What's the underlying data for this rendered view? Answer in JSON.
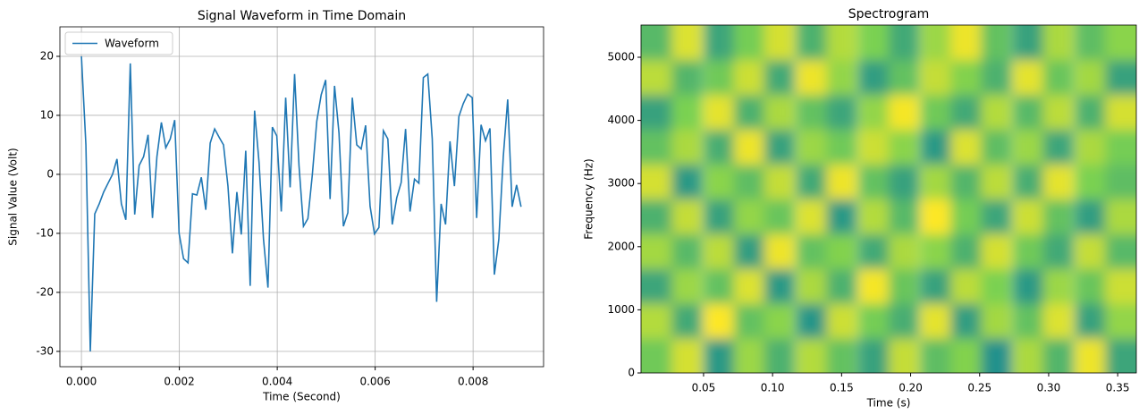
{
  "chart_data": [
    {
      "type": "line",
      "title": "Signal Waveform in Time Domain",
      "x_label": "Time (Second)",
      "y_label": "Signal Value (Volt)",
      "x": [
        0,
        9.1e-05,
        0.000181,
        0.000272,
        0.000363,
        0.000454,
        0.000544,
        0.000635,
        0.000726,
        0.000816,
        0.000907,
        0.000998,
        0.001088,
        0.001179,
        0.00127,
        0.001361,
        0.001451,
        0.001542,
        0.001633,
        0.001723,
        0.001814,
        0.001905,
        0.001995,
        0.002086,
        0.002177,
        0.002268,
        0.002358,
        0.002449,
        0.00254,
        0.00263,
        0.002721,
        0.002812,
        0.002902,
        0.002993,
        0.003084,
        0.003175,
        0.003265,
        0.003356,
        0.003447,
        0.003537,
        0.003628,
        0.003719,
        0.00381,
        0.0039,
        0.003991,
        0.004082,
        0.004172,
        0.004263,
        0.004354,
        0.004444,
        0.004535,
        0.004626,
        0.004717,
        0.004807,
        0.004898,
        0.004989,
        0.005079,
        0.00517,
        0.005261,
        0.005351,
        0.005442,
        0.005533,
        0.005624,
        0.005714,
        0.005805,
        0.005896,
        0.005986,
        0.006077,
        0.006168,
        0.006259,
        0.006349,
        0.00644,
        0.006531,
        0.006621,
        0.006712,
        0.006803,
        0.006893,
        0.006984,
        0.007075,
        0.007166,
        0.007256,
        0.007347,
        0.007438,
        0.007528,
        0.007619,
        0.00771,
        0.0078,
        0.007891,
        0.007982,
        0.008073,
        0.008163,
        0.008254,
        0.008345,
        0.008435,
        0.008526,
        0.008617,
        0.008707,
        0.008798,
        0.008889,
        0.00898
      ],
      "series": [
        {
          "name": "Waveform",
          "color": "#1f77b4",
          "values": [
            20,
            5,
            -30,
            -6.7,
            -5,
            -3,
            -1.5,
            0,
            2.6,
            -5,
            -7.7,
            18.8,
            -6.8,
            1.5,
            3,
            6.7,
            -7.4,
            3,
            8.8,
            4.5,
            6,
            9.2,
            -10,
            -14.3,
            -15,
            -3.3,
            -3.5,
            -0.5,
            -6,
            5.3,
            7.7,
            6.3,
            5,
            -2,
            -13.4,
            -3,
            -10.2,
            4,
            -18.9,
            10.8,
            2,
            -11,
            -19.2,
            8,
            6.5,
            -6.3,
            13,
            -2.2,
            17,
            1.5,
            -8.8,
            -7.5,
            0,
            9,
            13.5,
            16,
            -4.2,
            15,
            7,
            -8.8,
            -6.5,
            13,
            5,
            4.3,
            8.3,
            -5.4,
            -10.1,
            -9,
            7.4,
            6,
            -8.5,
            -4,
            -1.4,
            7.7,
            -6.3,
            -0.8,
            -1.5,
            16.4,
            17,
            6,
            -21.6,
            -5,
            -8.5,
            5.6,
            -2,
            9.8,
            12,
            13.6,
            13,
            -7.4,
            8.4,
            5.7,
            7.8,
            -17,
            -11,
            3,
            12.7,
            -5.5,
            -1.8,
            -5.5
          ]
        }
      ],
      "xlim": [
        -0.00044,
        0.00944
      ],
      "ylim": [
        -32.6,
        25
      ],
      "xticks": [
        {
          "value": 0,
          "label": "0.000"
        },
        {
          "value": 0.002,
          "label": "0.002"
        },
        {
          "value": 0.004,
          "label": "0.004"
        },
        {
          "value": 0.006,
          "label": "0.006"
        },
        {
          "value": 0.008,
          "label": "0.008"
        }
      ],
      "yticks": [
        -30,
        -20,
        -10,
        0,
        10,
        20
      ],
      "grid": true,
      "legend": "upper-left"
    },
    {
      "type": "heatmap",
      "title": "Spectrogram",
      "x_label": "Time (s)",
      "y_label": "Frequency (Hz)",
      "x": [
        0.016,
        0.038,
        0.061,
        0.083,
        0.105,
        0.128,
        0.15,
        0.173,
        0.195,
        0.218,
        0.24,
        0.262,
        0.285,
        0.307,
        0.33,
        0.352
      ],
      "y": [
        276,
        827,
        1378,
        1929,
        2480,
        3031,
        3582,
        4133,
        4684,
        5235
      ],
      "values": [
        [
          0.72,
          0.85,
          0.6,
          0.78,
          0.66,
          0.81,
          0.7,
          0.62,
          0.83,
          0.69,
          0.75,
          0.58,
          0.8,
          0.67,
          0.88,
          0.63
        ],
        [
          0.81,
          0.64,
          0.9,
          0.7,
          0.76,
          0.59,
          0.84,
          0.73,
          0.65,
          0.87,
          0.61,
          0.79,
          0.7,
          0.86,
          0.62,
          0.77
        ],
        [
          0.63,
          0.78,
          0.7,
          0.86,
          0.6,
          0.8,
          0.66,
          0.89,
          0.71,
          0.62,
          0.82,
          0.74,
          0.6,
          0.78,
          0.71,
          0.84
        ],
        [
          0.79,
          0.68,
          0.82,
          0.61,
          0.88,
          0.7,
          0.75,
          0.64,
          0.8,
          0.76,
          0.66,
          0.85,
          0.72,
          0.64,
          0.83,
          0.68
        ],
        [
          0.66,
          0.83,
          0.62,
          0.77,
          0.71,
          0.86,
          0.6,
          0.81,
          0.68,
          0.9,
          0.73,
          0.63,
          0.84,
          0.7,
          0.61,
          0.8
        ],
        [
          0.85,
          0.6,
          0.76,
          0.69,
          0.83,
          0.64,
          0.88,
          0.7,
          0.62,
          0.79,
          0.67,
          0.82,
          0.65,
          0.87,
          0.74,
          0.69
        ],
        [
          0.7,
          0.8,
          0.65,
          0.88,
          0.62,
          0.78,
          0.72,
          0.84,
          0.76,
          0.6,
          0.86,
          0.69,
          0.78,
          0.63,
          0.8,
          0.73
        ],
        [
          0.62,
          0.74,
          0.87,
          0.66,
          0.8,
          0.7,
          0.63,
          0.77,
          0.89,
          0.72,
          0.64,
          0.81,
          0.68,
          0.82,
          0.66,
          0.85
        ],
        [
          0.82,
          0.67,
          0.72,
          0.84,
          0.64,
          0.88,
          0.77,
          0.61,
          0.7,
          0.83,
          0.75,
          0.66,
          0.87,
          0.71,
          0.79,
          0.62
        ],
        [
          0.68,
          0.86,
          0.63,
          0.73,
          0.85,
          0.66,
          0.81,
          0.74,
          0.64,
          0.78,
          0.88,
          0.7,
          0.62,
          0.8,
          0.69,
          0.76
        ]
      ],
      "colormap": [
        "#21918c",
        "#7ad151",
        "#fde725"
      ],
      "xlim": [
        0.0047,
        0.3635
      ],
      "ylim": [
        0,
        5510
      ],
      "xticks": [
        0.05,
        {
          "value": 0.1,
          "label": "0.10"
        },
        0.15,
        {
          "value": 0.2,
          "label": "0.20"
        },
        0.25,
        {
          "value": 0.3,
          "label": "0.30"
        },
        0.35
      ],
      "yticks": [
        0,
        1000,
        2000,
        3000,
        4000,
        5000
      ],
      "grid": false
    }
  ]
}
